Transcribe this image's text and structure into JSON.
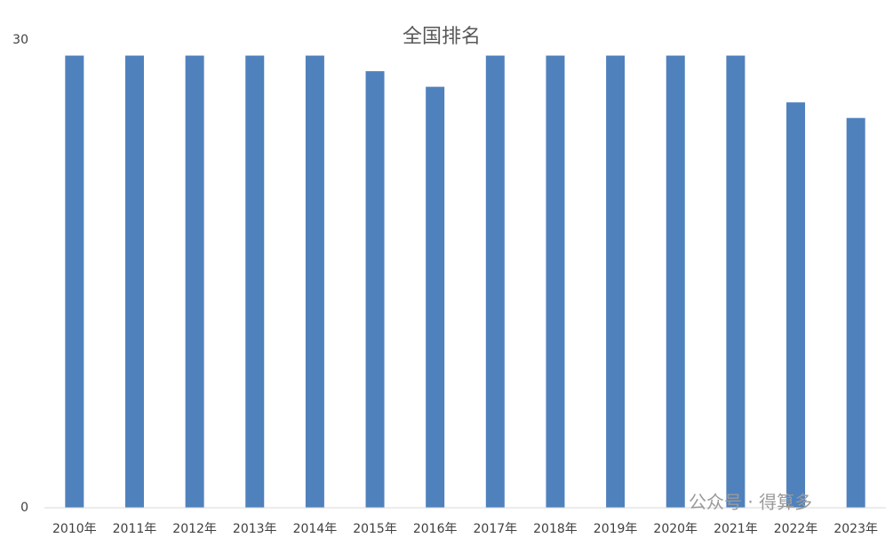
{
  "chart_data": {
    "type": "bar",
    "title": "全国排名",
    "categories": [
      "2010年",
      "2011年",
      "2012年",
      "2013年",
      "2014年",
      "2015年",
      "2016年",
      "2017年",
      "2018年",
      "2019年",
      "2020年",
      "2021年",
      "2022年",
      "2023年"
    ],
    "values": [
      29,
      29,
      29,
      29,
      29,
      28,
      27,
      29,
      29,
      29,
      29,
      29,
      26,
      25
    ],
    "color": "#4f81bd",
    "ylim": [
      0,
      30
    ],
    "yticks": [
      0,
      30
    ],
    "grid": false,
    "watermark": "公众号 · 得算多"
  }
}
